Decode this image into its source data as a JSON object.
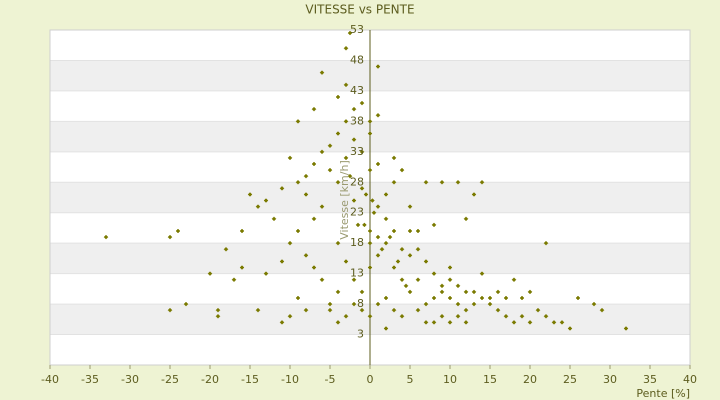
{
  "chart_data": {
    "type": "scatter",
    "title": "VITESSE vs PENTE",
    "x_label": "Pente [%]",
    "y_label": "Vitesse [km/h]",
    "color": "#7a7a00",
    "bands": true,
    "xlim": [
      -40,
      40
    ],
    "xticks": [
      -40,
      -35,
      -30,
      -25,
      -20,
      -15,
      -10,
      -5,
      0,
      5,
      10,
      15,
      20,
      25,
      30,
      35,
      40
    ],
    "ylim": [
      -2,
      53
    ],
    "yticks": [
      3,
      8,
      13,
      18,
      23,
      28,
      33,
      38,
      43,
      48,
      53
    ],
    "x": [
      -5,
      -4,
      -3,
      -2,
      -1,
      0,
      1,
      2,
      3,
      -6,
      -7,
      -8,
      -9,
      -10,
      -11,
      -12,
      -4,
      -3,
      -2,
      -1,
      0,
      1,
      2,
      3,
      4,
      5,
      6,
      7,
      -5,
      -4,
      -6,
      -7,
      -8,
      0,
      1,
      0,
      2,
      -2,
      -1,
      0,
      1,
      -3,
      -4,
      -5,
      -6,
      -7,
      -8,
      -9,
      -10,
      -11,
      -13,
      -14,
      -15,
      -16,
      3,
      4,
      5,
      6,
      4,
      5,
      8,
      9,
      10,
      11,
      12,
      13,
      14,
      15,
      16,
      17,
      18,
      19,
      20,
      21,
      22,
      23,
      9,
      10,
      11,
      12,
      7,
      8,
      6,
      7,
      8,
      9,
      10,
      11,
      12,
      13,
      15,
      16,
      17,
      18,
      19,
      20,
      14,
      10,
      6,
      5,
      2,
      3,
      1,
      0,
      -1,
      -2,
      -3,
      -4,
      -5,
      -8,
      -10,
      -11,
      -9,
      2,
      4,
      -6,
      -3,
      -9,
      -1,
      -3,
      -2.5,
      1,
      -4,
      -2,
      0,
      1,
      3,
      -7,
      13,
      11,
      9,
      7,
      14,
      8,
      12,
      22,
      32,
      28,
      29,
      24,
      25,
      26,
      -33,
      -25,
      -24,
      -25,
      -23,
      -19,
      -19,
      -14,
      -16,
      -17,
      -13,
      -18,
      -20,
      -1.5,
      0.5,
      1.5,
      -0.5,
      2.5,
      3.5,
      -2.5,
      4.5,
      0.3,
      -0.7
    ],
    "values": [
      30,
      28,
      32,
      25,
      27,
      30,
      24,
      22,
      20,
      24,
      22,
      26,
      20,
      18,
      15,
      22,
      18,
      15,
      12,
      10,
      14,
      16,
      18,
      14,
      12,
      10,
      12,
      15,
      8,
      10,
      12,
      14,
      16,
      20,
      19,
      18,
      26,
      35,
      33,
      36,
      31,
      38,
      36,
      34,
      33,
      31,
      29,
      28,
      32,
      27,
      25,
      24,
      26,
      20,
      28,
      30,
      24,
      20,
      17,
      16,
      13,
      11,
      9,
      8,
      7,
      10,
      9,
      8,
      7,
      6,
      5,
      6,
      5,
      7,
      6,
      5,
      6,
      5,
      6,
      5,
      5,
      5,
      7,
      8,
      9,
      10,
      12,
      11,
      10,
      8,
      9,
      10,
      9,
      12,
      9,
      10,
      13,
      14,
      17,
      20,
      9,
      7,
      8,
      6,
      7,
      8,
      6,
      5,
      7,
      7,
      6,
      5,
      9,
      4,
      6,
      46,
      44,
      38,
      41,
      50,
      52.5,
      47,
      42,
      40,
      38,
      39,
      32,
      40,
      26,
      28,
      28,
      28,
      28,
      21,
      22,
      18,
      4,
      8,
      7,
      5,
      4,
      9,
      19,
      19,
      20,
      7,
      8,
      6,
      7,
      7,
      14,
      12,
      13,
      17,
      13,
      21,
      23,
      17,
      26,
      19,
      15,
      29,
      11,
      25,
      21
    ]
  }
}
